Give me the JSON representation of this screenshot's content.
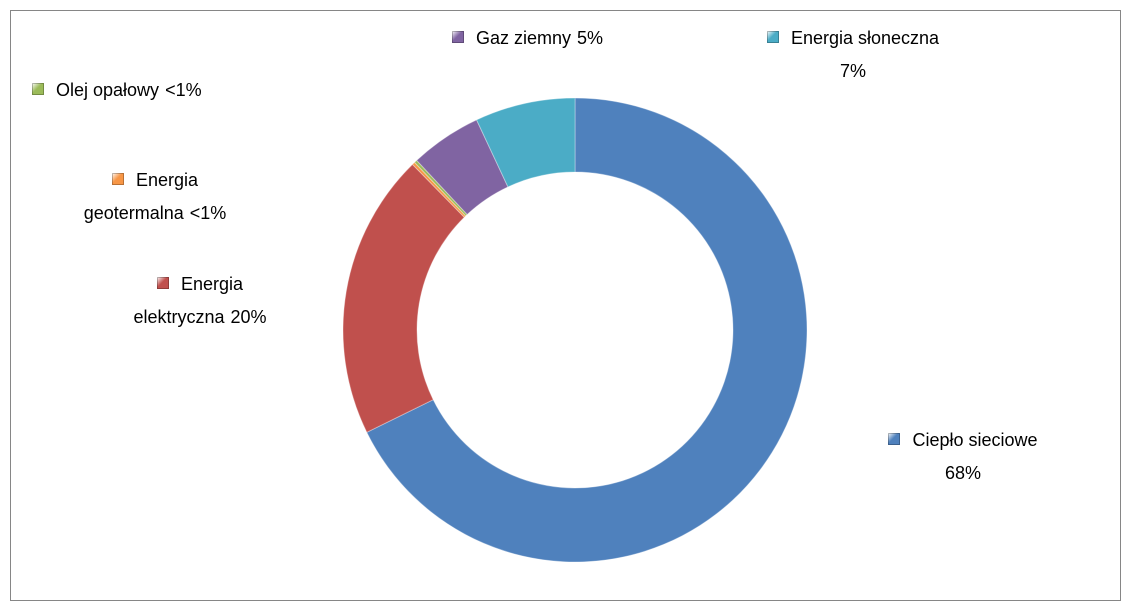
{
  "chart_data": {
    "type": "donut",
    "categories": [
      "Ciepło sieciowe",
      "Energia elektryczna",
      "Energia geotermalna",
      "Olej opałowy",
      "Gaz ziemny",
      "Energia słoneczna"
    ],
    "values": [
      68,
      20,
      0.2,
      0.2,
      5,
      7
    ],
    "value_labels": [
      "68%",
      "20%",
      "<1%",
      "<1%",
      "5%",
      "7%"
    ],
    "colors": [
      "#4f81bd",
      "#c0504d",
      "#f79646",
      "#9bbb59",
      "#8064a2",
      "#4bacc6"
    ]
  }
}
